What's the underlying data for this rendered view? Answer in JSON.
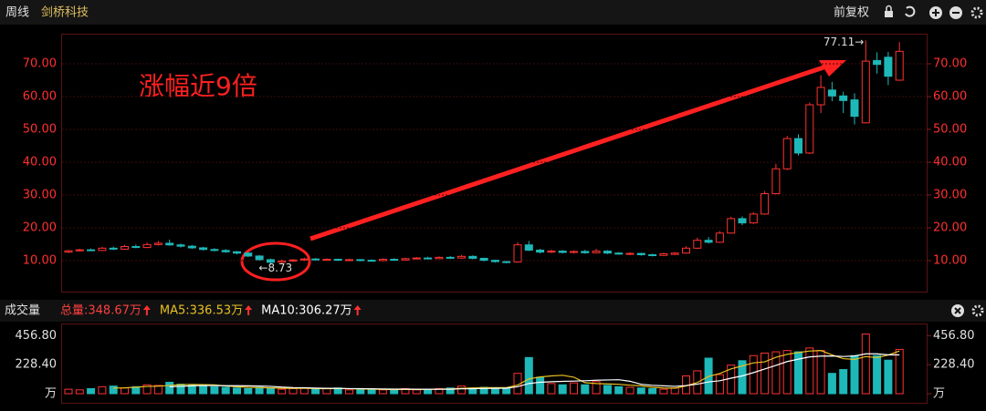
{
  "header": {
    "period": "周线",
    "stock": "剑桥科技",
    "adjust": "前复权"
  },
  "chart_data": [
    {
      "type": "candlestick",
      "open": [
        12.6,
        13.0,
        13.3,
        13.1,
        13.8,
        13.5,
        14.3,
        14.0,
        14.9,
        15.3,
        14.8,
        14.4,
        13.9,
        13.4,
        13.1,
        12.7,
        12.3,
        11.4,
        10.3,
        9.5,
        9.9,
        10.2,
        10.5,
        10.3,
        10.4,
        10.2,
        10.3,
        10.1,
        10.0,
        10.4,
        10.2,
        10.6,
        10.8,
        10.6,
        11.0,
        10.8,
        11.3,
        10.7,
        10.1,
        9.7,
        9.6,
        14.8,
        13.2,
        12.6,
        12.9,
        12.5,
        12.8,
        12.4,
        12.9,
        12.3,
        12.0,
        12.2,
        11.8,
        11.6,
        11.9,
        12.3,
        13.8,
        16.2,
        15.6,
        18.4,
        22.8,
        21.5,
        24.2,
        30.4,
        38.0,
        47.2,
        42.8,
        57.5,
        62.0,
        60.2,
        59.0,
        52.0,
        71.0,
        72.0,
        65.0
      ],
      "high": [
        13.3,
        13.6,
        13.7,
        14.2,
        14.3,
        14.8,
        14.9,
        15.5,
        16.0,
        16.4,
        15.2,
        14.8,
        14.2,
        13.8,
        13.5,
        13.0,
        12.6,
        11.7,
        10.6,
        10.3,
        10.5,
        10.9,
        10.8,
        10.7,
        10.6,
        10.6,
        10.5,
        10.4,
        10.7,
        10.7,
        10.9,
        11.1,
        11.2,
        11.3,
        11.4,
        11.7,
        11.6,
        10.9,
        10.3,
        9.9,
        15.6,
        16.0,
        13.6,
        13.3,
        13.2,
        13.1,
        13.3,
        13.6,
        13.2,
        12.6,
        12.5,
        12.4,
        12.1,
        12.4,
        12.6,
        14.4,
        17.0,
        17.2,
        19.0,
        23.4,
        23.5,
        24.8,
        31.2,
        39.5,
        48.0,
        48.5,
        58.2,
        66.5,
        64.5,
        61.5,
        61.0,
        77.11,
        73.5,
        73.6,
        76.6
      ],
      "low": [
        12.3,
        12.8,
        12.9,
        12.9,
        13.2,
        13.3,
        13.8,
        13.8,
        14.6,
        14.5,
        14.0,
        13.6,
        13.1,
        12.8,
        12.4,
        11.9,
        11.1,
        10.0,
        8.73,
        9.2,
        9.6,
        9.9,
        10.0,
        10.0,
        9.9,
        9.9,
        9.8,
        9.7,
        9.8,
        9.9,
        10.0,
        10.4,
        10.4,
        10.5,
        10.5,
        10.6,
        10.4,
        9.8,
        9.4,
        9.2,
        9.4,
        12.9,
        12.2,
        12.3,
        12.2,
        12.2,
        12.1,
        12.2,
        12.0,
        11.8,
        11.7,
        11.5,
        11.3,
        11.4,
        11.7,
        12.1,
        13.5,
        15.2,
        15.4,
        18.2,
        20.8,
        21.2,
        24.0,
        30.2,
        37.6,
        42.0,
        42.5,
        55.0,
        58.6,
        55.0,
        51.5,
        51.8,
        67.0,
        63.5,
        64.8
      ],
      "close": [
        13.0,
        13.3,
        13.1,
        13.8,
        13.5,
        14.3,
        14.0,
        14.9,
        15.3,
        14.8,
        14.4,
        13.9,
        13.4,
        13.1,
        12.7,
        12.3,
        11.4,
        10.3,
        9.5,
        9.9,
        10.2,
        10.5,
        10.3,
        10.4,
        10.2,
        10.3,
        10.1,
        10.0,
        10.4,
        10.2,
        10.6,
        10.8,
        10.6,
        11.0,
        10.8,
        11.3,
        10.7,
        10.1,
        9.7,
        9.5,
        14.8,
        13.2,
        12.6,
        12.9,
        12.5,
        12.8,
        12.4,
        12.9,
        12.3,
        12.0,
        12.2,
        11.8,
        11.6,
        12.1,
        12.3,
        13.8,
        16.2,
        15.6,
        18.4,
        22.8,
        21.5,
        24.2,
        30.4,
        38.0,
        47.2,
        42.8,
        57.5,
        62.8,
        60.2,
        58.8,
        54.0,
        70.8,
        69.8,
        66.2,
        73.8
      ],
      "up_color": "#ff3232",
      "down_color": "#1fb8b8",
      "ylim": [
        0.5,
        79
      ],
      "yticks": [
        {
          "value": 10,
          "label": "10.00"
        },
        {
          "value": 20,
          "label": "20.00"
        },
        {
          "value": 30,
          "label": "30.00"
        },
        {
          "value": 40,
          "label": "40.00"
        },
        {
          "value": 50,
          "label": "50.00"
        },
        {
          "value": 60,
          "label": "60.00"
        },
        {
          "value": 70,
          "label": "70.00"
        }
      ],
      "grid": true,
      "annotation": "涨幅近9倍",
      "high_label": {
        "value": 77.11,
        "label": "77.11→"
      },
      "low_label": {
        "value": 8.73,
        "label": "←8.73"
      }
    },
    {
      "type": "volume",
      "title": "成交量",
      "values": [
        35,
        30,
        40,
        55,
        60,
        45,
        55,
        70,
        65,
        90,
        75,
        65,
        60,
        55,
        50,
        45,
        40,
        50,
        45,
        35,
        40,
        45,
        35,
        40,
        45,
        30,
        35,
        30,
        30,
        35,
        40,
        30,
        35,
        40,
        45,
        60,
        45,
        50,
        40,
        45,
        160,
        285,
        130,
        80,
        70,
        85,
        70,
        95,
        65,
        55,
        50,
        45,
        40,
        35,
        45,
        140,
        180,
        280,
        150,
        225,
        260,
        300,
        320,
        330,
        340,
        330,
        360,
        340,
        160,
        190,
        300,
        470,
        300,
        264,
        348.67
      ],
      "total_label": "总量:348.67万",
      "total_color": "#ff4040",
      "series": [
        {
          "label": "MA5:336.53万",
          "color": "#e8c020",
          "values": [
            null,
            null,
            null,
            null,
            44,
            46,
            51,
            57,
            59,
            65,
            71,
            73,
            71,
            69,
            61,
            55,
            50,
            48,
            46,
            43,
            42,
            43,
            40,
            39,
            41,
            39,
            37,
            36,
            34,
            32,
            34,
            33,
            34,
            36,
            38,
            42,
            45,
            48,
            48,
            48,
            68,
            116,
            132,
            140,
            145,
            130,
            87,
            80,
            77,
            74,
            67,
            62,
            51,
            45,
            43,
            61,
            88,
            136,
            159,
            195,
            219,
            243,
            251,
            287,
            310,
            324,
            336,
            340,
            306,
            276,
            270,
            292,
            284,
            305,
            336.53
          ]
        },
        {
          "label": "MA10:306.27万",
          "color": "#ffffff",
          "values": [
            null,
            null,
            null,
            null,
            null,
            null,
            null,
            null,
            null,
            55,
            58,
            62,
            64,
            64,
            63,
            63,
            62,
            60,
            58,
            52,
            48,
            47,
            44,
            42,
            42,
            40,
            40,
            39,
            37,
            36,
            36,
            35,
            35,
            35,
            35,
            38,
            39,
            41,
            42,
            43,
            55,
            80,
            90,
            94,
            97,
            99,
            102,
            106,
            108,
            110,
            98,
            74,
            66,
            62,
            58,
            64,
            75,
            93,
            102,
            122,
            140,
            166,
            194,
            223,
            253,
            272,
            290,
            296,
            297,
            293,
            297,
            314,
            314,
            306,
            306.27
          ]
        }
      ],
      "ylim": [
        0,
        550
      ],
      "yticks": [
        {
          "value": 0,
          "label": "万"
        },
        {
          "value": 228.4,
          "label": "228.40"
        },
        {
          "value": 456.8,
          "label": "456.80"
        }
      ]
    }
  ]
}
